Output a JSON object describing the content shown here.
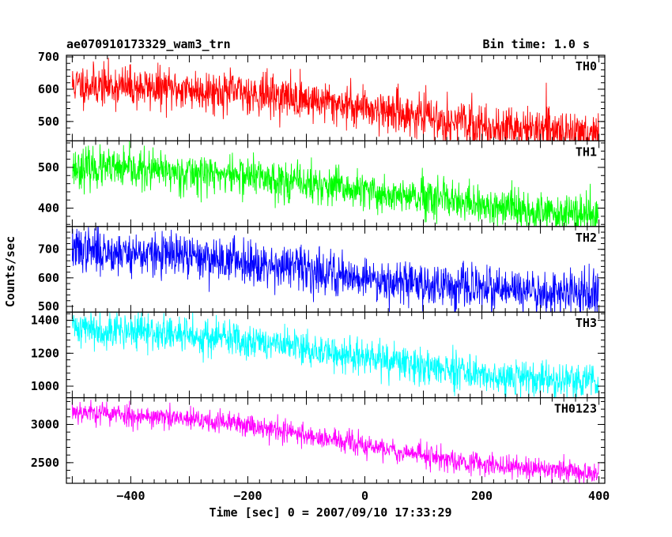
{
  "header": {
    "title": "ae070910173329_wam3_trn",
    "bin_time": "Bin time: 1.0 s"
  },
  "axes": {
    "xlabel": "Time [sec] 0 = 2007/09/10 17:33:29",
    "ylabel": "Counts/sec"
  },
  "chart_data": {
    "type": "line",
    "x_range": [
      -510,
      410
    ],
    "x_ticks": [
      -400,
      -200,
      0,
      200,
      400
    ],
    "x_tick_labels": [
      "−400",
      "−200",
      "0",
      "200",
      "400"
    ],
    "panels": [
      {
        "name": "TH0",
        "color": "#ff0000",
        "ylim": [
          440,
          705
        ],
        "yticks": [
          500,
          600,
          700
        ],
        "trend": [
          [
            -500,
            615
          ],
          [
            -200,
            590
          ],
          [
            0,
            545
          ],
          [
            200,
            485
          ],
          [
            400,
            462
          ]
        ],
        "noise": 32,
        "seed": 11
      },
      {
        "name": "TH1",
        "color": "#00ff00",
        "ylim": [
          355,
          565
        ],
        "yticks": [
          400,
          500
        ],
        "trend": [
          [
            -500,
            500
          ],
          [
            -200,
            480
          ],
          [
            0,
            440
          ],
          [
            200,
            405
          ],
          [
            400,
            380
          ]
        ],
        "noise": 24,
        "seed": 23
      },
      {
        "name": "TH2",
        "color": "#0000ff",
        "ylim": [
          480,
          780
        ],
        "yticks": [
          500,
          600,
          700
        ],
        "trend": [
          [
            -500,
            700
          ],
          [
            -200,
            660
          ],
          [
            0,
            600
          ],
          [
            200,
            560
          ],
          [
            400,
            540
          ]
        ],
        "noise": 38,
        "seed": 37
      },
      {
        "name": "TH3",
        "color": "#00ffff",
        "ylim": [
          930,
          1450
        ],
        "yticks": [
          1000,
          1200,
          1400
        ],
        "trend": [
          [
            -500,
            1360
          ],
          [
            -200,
            1280
          ],
          [
            0,
            1170
          ],
          [
            200,
            1070
          ],
          [
            400,
            1020
          ]
        ],
        "noise": 55,
        "seed": 41
      },
      {
        "name": "TH0123",
        "color": "#ff00ff",
        "ylim": [
          2230,
          3350
        ],
        "yticks": [
          2500,
          3000
        ],
        "trend": [
          [
            -500,
            3180
          ],
          [
            -200,
            3000
          ],
          [
            0,
            2720
          ],
          [
            200,
            2480
          ],
          [
            400,
            2360
          ]
        ],
        "noise": 75,
        "seed": 53
      }
    ]
  }
}
